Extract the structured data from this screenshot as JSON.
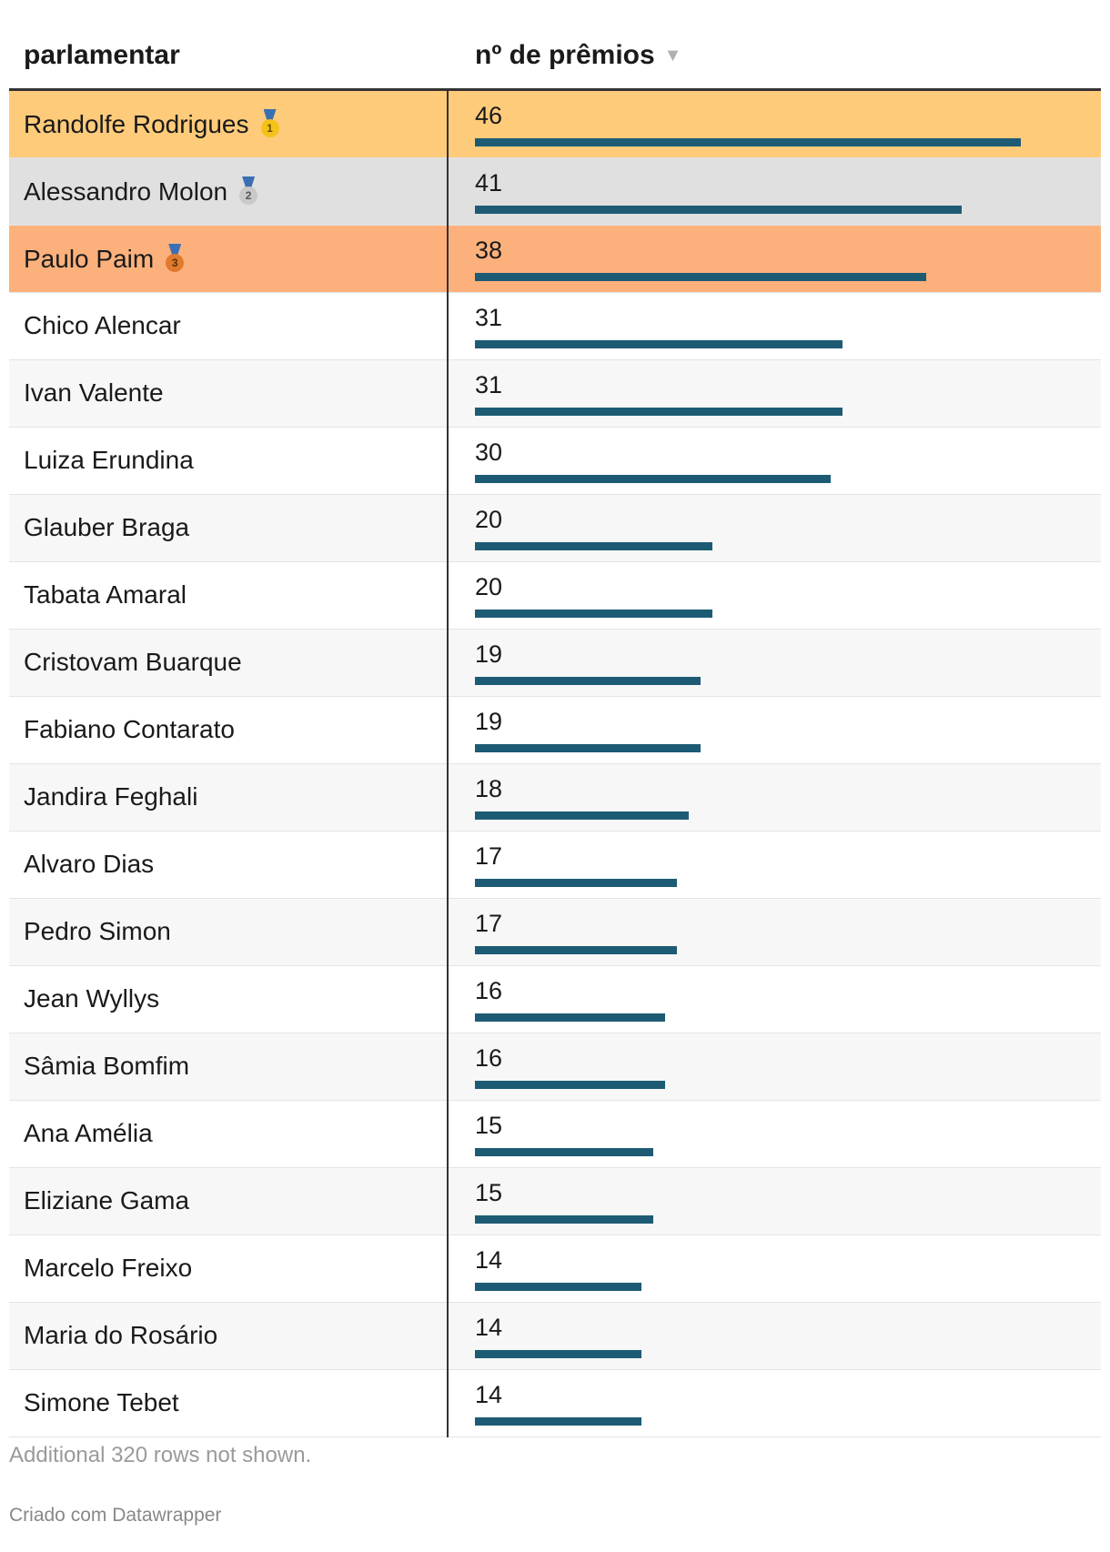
{
  "table": {
    "header": {
      "col1": "parlamentar",
      "col2": "nº de prêmios",
      "sort_icon": "sort-descending-icon"
    },
    "colors": {
      "bar": "#1d5b74",
      "gold": "#fecb7a",
      "silver": "#e0e0e0",
      "bronze": "#fcb17c",
      "stripe": "#f7f7f7",
      "plain": "#ffffff"
    },
    "footer_note": "Additional 320 rows not shown.",
    "credit": "Criado com Datawrapper"
  },
  "chart_data": {
    "type": "table",
    "columns": [
      "parlamentar",
      "nº de prêmios"
    ],
    "max_value": 46,
    "rows": [
      {
        "name": "Randolfe Rodrigues",
        "value": 46,
        "medal": "gold"
      },
      {
        "name": "Alessandro Molon",
        "value": 41,
        "medal": "silver"
      },
      {
        "name": "Paulo Paim",
        "value": 38,
        "medal": "bronze"
      },
      {
        "name": "Chico Alencar",
        "value": 31,
        "medal": ""
      },
      {
        "name": "Ivan Valente",
        "value": 31,
        "medal": ""
      },
      {
        "name": "Luiza Erundina",
        "value": 30,
        "medal": ""
      },
      {
        "name": "Glauber Braga",
        "value": 20,
        "medal": ""
      },
      {
        "name": "Tabata Amaral",
        "value": 20,
        "medal": ""
      },
      {
        "name": "Cristovam Buarque",
        "value": 19,
        "medal": ""
      },
      {
        "name": "Fabiano Contarato",
        "value": 19,
        "medal": ""
      },
      {
        "name": "Jandira Feghali",
        "value": 18,
        "medal": ""
      },
      {
        "name": "Alvaro Dias",
        "value": 17,
        "medal": ""
      },
      {
        "name": "Pedro Simon",
        "value": 17,
        "medal": ""
      },
      {
        "name": "Jean Wyllys",
        "value": 16,
        "medal": ""
      },
      {
        "name": "Sâmia Bomfim",
        "value": 16,
        "medal": ""
      },
      {
        "name": "Ana Amélia",
        "value": 15,
        "medal": ""
      },
      {
        "name": "Eliziane Gama",
        "value": 15,
        "medal": ""
      },
      {
        "name": "Marcelo Freixo",
        "value": 14,
        "medal": ""
      },
      {
        "name": "Maria do Rosário",
        "value": 14,
        "medal": ""
      },
      {
        "name": "Simone Tebet",
        "value": 14,
        "medal": ""
      }
    ]
  }
}
